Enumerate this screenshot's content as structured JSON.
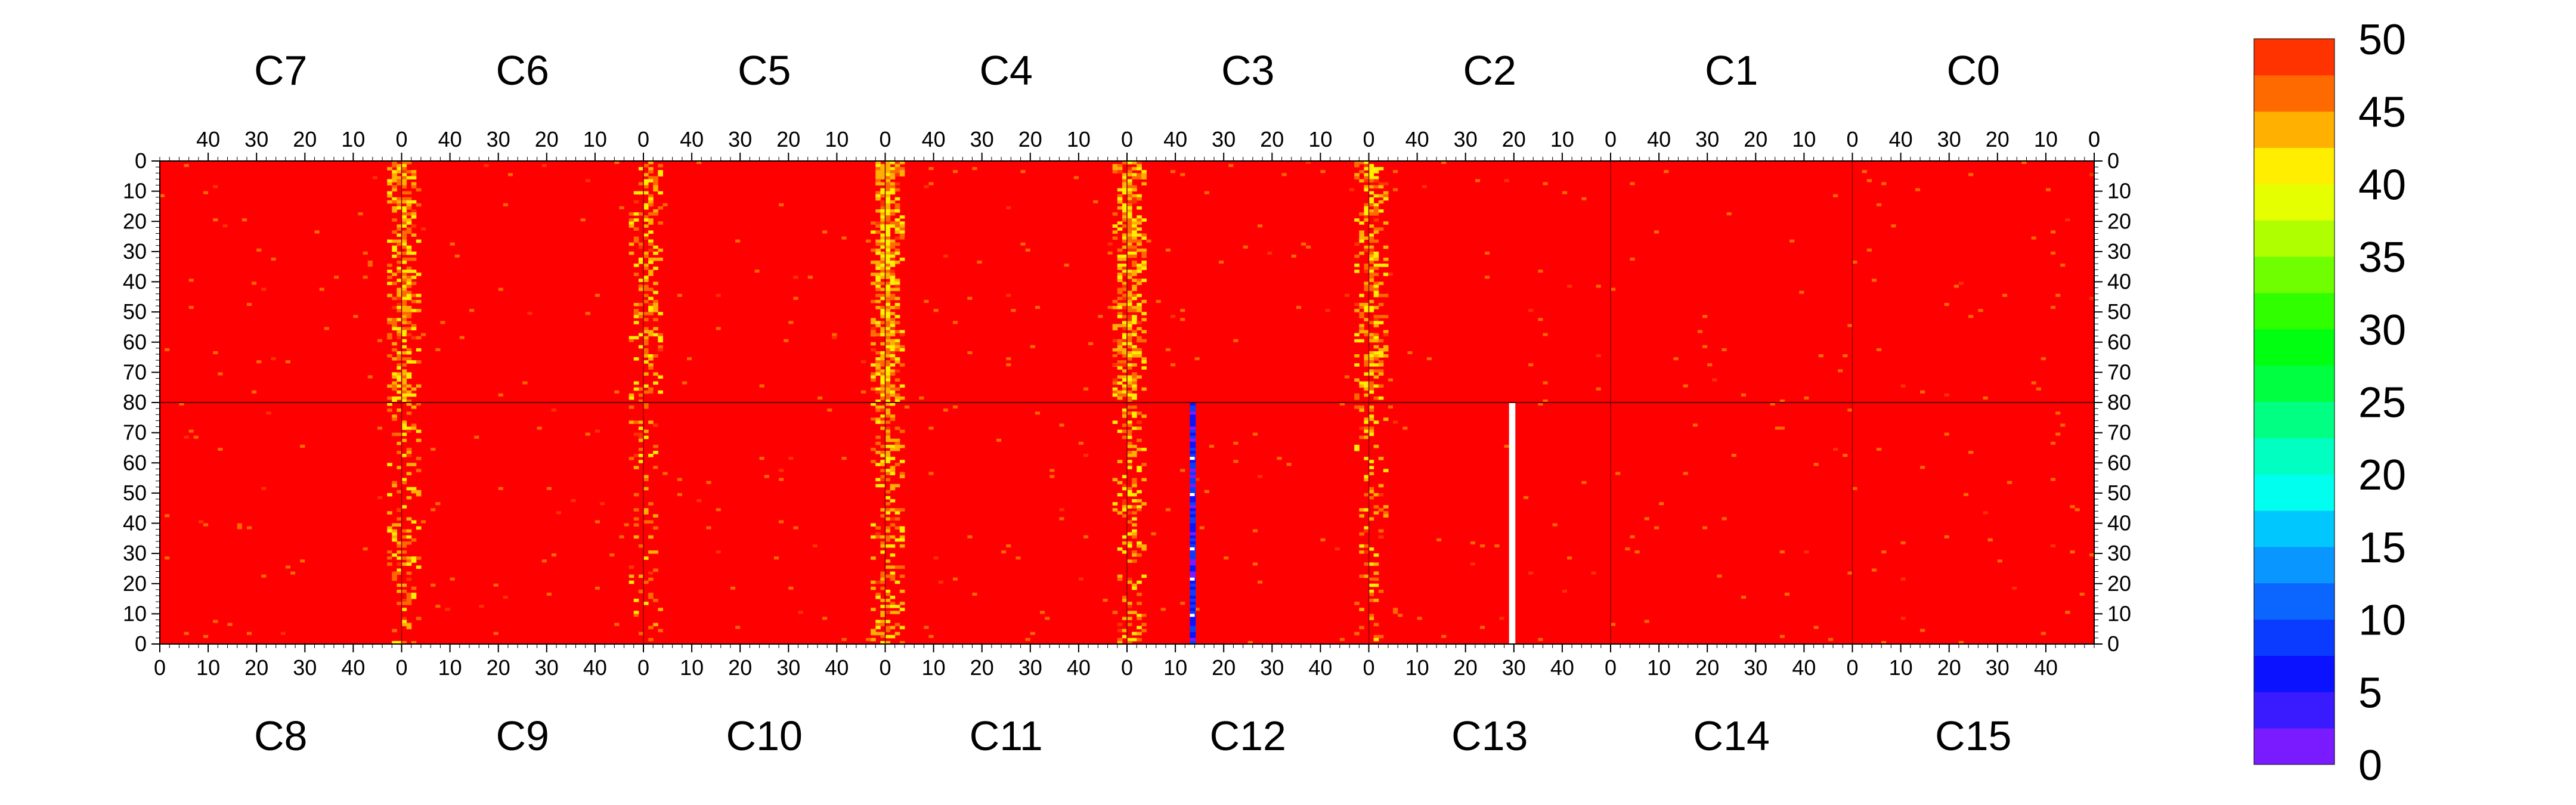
{
  "chart_data": {
    "type": "heatmap",
    "title": "",
    "top_chips": [
      "C7",
      "C6",
      "C5",
      "C4",
      "C3",
      "C2",
      "C1",
      "C0"
    ],
    "bottom_chips": [
      "C8",
      "C9",
      "C10",
      "C11",
      "C12",
      "C13",
      "C14",
      "C15"
    ],
    "columns_per_chip": 50,
    "rows_per_half": 80,
    "top_x_ticks": [
      40,
      30,
      20,
      10,
      0
    ],
    "bottom_x_ticks": [
      0,
      10,
      20,
      30,
      40
    ],
    "top_y_ticks": [
      0,
      10,
      20,
      30,
      40,
      50,
      60,
      70,
      80
    ],
    "bottom_y_ticks": [
      80,
      70,
      60,
      50,
      40,
      30,
      20,
      10,
      0
    ],
    "top_x_direction": "decreasing left-to-right",
    "bottom_x_direction": "increasing left-to-right",
    "z_range": [
      0,
      50
    ],
    "colorbar_ticks": [
      50,
      45,
      40,
      35,
      30,
      25,
      20,
      15,
      10,
      5,
      0
    ],
    "colorbar_levels": [
      {
        "min": 0,
        "max": 2.5,
        "color": "#7a1aff"
      },
      {
        "min": 2.5,
        "max": 5,
        "color": "#3a1aff"
      },
      {
        "min": 5,
        "max": 7.5,
        "color": "#0a12ff"
      },
      {
        "min": 7.5,
        "max": 10,
        "color": "#0a3cff"
      },
      {
        "min": 10,
        "max": 12.5,
        "color": "#0a66ff"
      },
      {
        "min": 12.5,
        "max": 15,
        "color": "#0a96ff"
      },
      {
        "min": 15,
        "max": 17.5,
        "color": "#00c8ff"
      },
      {
        "min": 17.5,
        "max": 20,
        "color": "#00ffee"
      },
      {
        "min": 20,
        "max": 22.5,
        "color": "#00ffc0"
      },
      {
        "min": 22.5,
        "max": 25,
        "color": "#00ff82"
      },
      {
        "min": 25,
        "max": 27.5,
        "color": "#00ff40"
      },
      {
        "min": 27.5,
        "max": 30,
        "color": "#00ff10"
      },
      {
        "min": 30,
        "max": 32.5,
        "color": "#30ff00"
      },
      {
        "min": 32.5,
        "max": 35,
        "color": "#70ff00"
      },
      {
        "min": 35,
        "max": 37.5,
        "color": "#b0ff00"
      },
      {
        "min": 37.5,
        "max": 40,
        "color": "#e6ff00"
      },
      {
        "min": 40,
        "max": 42.5,
        "color": "#ffee00"
      },
      {
        "min": 42.5,
        "max": 45,
        "color": "#ffb000"
      },
      {
        "min": 45,
        "max": 47.5,
        "color": "#ff6a00"
      },
      {
        "min": 47.5,
        "max": 50,
        "color": "#ff3300"
      }
    ],
    "background_value": 50,
    "background_color": "#ff0000",
    "grid": false,
    "legend_position": "right (colorbar)",
    "features": [
      {
        "description": "vertical band of lower values (about 45-47)",
        "half": "top and bottom",
        "chip_boundaries_x": [
          1,
          2,
          3,
          4,
          5
        ],
        "value_range": [
          40,
          50
        ]
      },
      {
        "description": "dead column (values ~5-10)",
        "half": "bottom",
        "chip": "C12",
        "column": 13,
        "rows": [
          1,
          80
        ],
        "value_range": [
          0,
          10
        ]
      },
      {
        "description": "masked column (no data)",
        "half": "bottom",
        "chip": "C13",
        "column": 29,
        "rows": [
          1,
          80
        ],
        "value": null
      }
    ]
  }
}
